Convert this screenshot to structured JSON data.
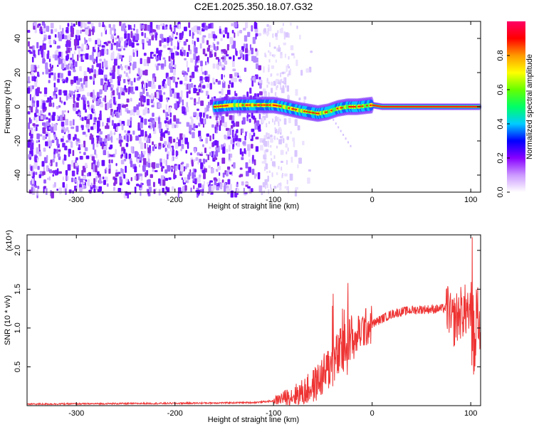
{
  "title": "C2E1.2025.350.18.07.G32",
  "chart_data": [
    {
      "type": "heatmap",
      "xlabel": "Height of straight line (km)",
      "ylabel": "Frequency (Hz)",
      "xlim": [
        -350,
        110
      ],
      "ylim": [
        -50,
        50
      ],
      "x_ticks": [
        -300,
        -200,
        -100,
        0,
        100
      ],
      "y_ticks": [
        -40,
        -20,
        0,
        20,
        40
      ],
      "noise_region_x": [
        -350,
        -110
      ],
      "faint_noise_region_x": [
        -110,
        -85
      ],
      "signal_track": [
        {
          "x": -160,
          "y": 0
        },
        {
          "x": -140,
          "y": 1
        },
        {
          "x": -120,
          "y": 1
        },
        {
          "x": -100,
          "y": 1
        },
        {
          "x": -90,
          "y": 0
        },
        {
          "x": -75,
          "y": -2
        },
        {
          "x": -65,
          "y": -3
        },
        {
          "x": -55,
          "y": -4
        },
        {
          "x": -45,
          "y": -3
        },
        {
          "x": -35,
          "y": -1
        },
        {
          "x": -25,
          "y": 0
        },
        {
          "x": -15,
          "y": 0
        },
        {
          "x": 0,
          "y": 1
        },
        {
          "x": 10,
          "y": 0
        },
        {
          "x": 50,
          "y": 0
        },
        {
          "x": 110,
          "y": 0
        }
      ],
      "colorbar": {
        "label": "Normalized spectral amplitude",
        "range": [
          0,
          1
        ],
        "ticks": [
          "0.0",
          "0.2",
          "0.4",
          "0.6",
          "0.8"
        ],
        "colors": [
          "#ffffff",
          "#cc99ff",
          "#8800ff",
          "#0000ff",
          "#00ccff",
          "#00ff66",
          "#66ff00",
          "#ffff00",
          "#ff9900",
          "#ff0000",
          "#ff0066"
        ]
      }
    },
    {
      "type": "line",
      "xlabel": "Height of straight line (km)",
      "ylabel": "SNR (10 * v/v)",
      "y_multiplier": "(x10⁴)",
      "xlim": [
        -350,
        110
      ],
      "ylim": [
        0,
        2.2
      ],
      "x_ticks": [
        -300,
        -200,
        -100,
        0,
        100
      ],
      "y_ticks": [
        0.5,
        1.0,
        1.5,
        2.0
      ],
      "y_tick_labels": [
        "0.5",
        "1.0",
        "1.5",
        "2.0"
      ],
      "series": [
        {
          "color": "#ee3333",
          "x": [
            -350,
            -200,
            -120,
            -100,
            -90,
            -80,
            -70,
            -60,
            -50,
            -40,
            -30,
            -20,
            -15,
            -10,
            0,
            10,
            20,
            30,
            40,
            50,
            60,
            70,
            75,
            78,
            80,
            90,
            100,
            102,
            104,
            106,
            110
          ],
          "y": [
            0.02,
            0.03,
            0.04,
            0.06,
            0.1,
            0.13,
            0.17,
            0.25,
            0.38,
            0.55,
            0.7,
            0.82,
            0.9,
            0.98,
            1.05,
            1.12,
            1.18,
            1.21,
            1.23,
            1.24,
            1.24,
            1.25,
            1.26,
            1.25,
            1.05,
            1.2,
            1.25,
            1.5,
            0.6,
            1.3,
            0.9
          ]
        }
      ]
    }
  ]
}
